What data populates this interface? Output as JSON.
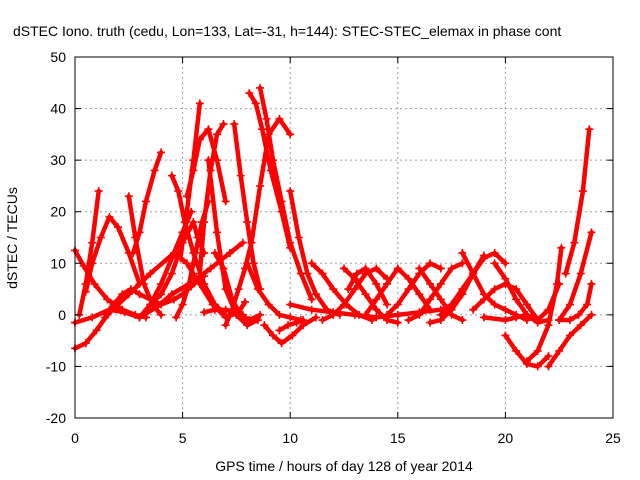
{
  "chart_data": {
    "type": "scatter",
    "title": "dSTEC Iono. truth (cedu, Lon=133, Lat=-31, h=144): STEC-STEC_elemax in phase cont",
    "xlabel": "GPS time / hours of day 128 of year 2014",
    "ylabel": "dSTEC  / TECUs",
    "xlim": [
      0,
      25
    ],
    "ylim": [
      -20,
      50
    ],
    "x_ticks": [
      "0",
      "5",
      "10",
      "15",
      "20",
      "25"
    ],
    "y_ticks": [
      "-20",
      "-10",
      "0",
      "10",
      "20",
      "30",
      "40",
      "50"
    ],
    "grid": true,
    "marker": "plus",
    "color": "#ff0000",
    "series": [
      {
        "x": [
          0.0,
          0.5,
          1.0,
          1.5,
          2.5,
          3.5,
          4.6,
          5.2,
          5.8,
          6.4,
          7.0,
          7.6,
          7.9
        ],
        "y": [
          -6.5,
          -5.5,
          -3,
          0,
          4,
          8,
          12,
          10,
          6,
          2,
          -0.5,
          0.5,
          2.5
        ]
      },
      {
        "x": [
          0.0,
          0.4,
          0.9,
          1.5,
          2.2,
          2.8,
          3.3
        ],
        "y": [
          12.5,
          9.5,
          6,
          3,
          1,
          0,
          -0.5
        ]
      },
      {
        "x": [
          0.0,
          0.8,
          1.6,
          2.3,
          3.0,
          3.8,
          4.5,
          5.5,
          6.3,
          7.2,
          7.8
        ],
        "y": [
          -1.5,
          -0.5,
          1,
          0.5,
          -0.5,
          1.5,
          4,
          6.5,
          9,
          12,
          14
        ]
      },
      {
        "x": [
          0.5,
          0.8,
          1.2,
          1.6,
          2.0,
          2.5,
          3.0
        ],
        "y": [
          4.5,
          10,
          15,
          19,
          17,
          12,
          6
        ]
      },
      {
        "x": [
          0.2,
          0.5,
          0.8,
          1.1
        ],
        "y": [
          0,
          6,
          14,
          24
        ]
      },
      {
        "x": [
          1.4,
          1.8,
          2.2,
          2.6,
          3.0,
          3.5,
          4.0,
          4.6,
          5.0,
          5.4,
          5.8,
          6.0
        ],
        "y": [
          -0.5,
          2,
          4,
          5,
          4,
          3,
          2,
          3,
          4,
          5.5,
          7,
          7.5
        ]
      },
      {
        "x": [
          2.5,
          2.8,
          3.2,
          3.6,
          4.0
        ],
        "y": [
          23,
          15,
          6,
          2,
          0
        ]
      },
      {
        "x": [
          2.7,
          3.0,
          3.3,
          3.7,
          4.0
        ],
        "y": [
          12,
          16,
          22,
          28,
          31.5
        ]
      },
      {
        "x": [
          3.0,
          3.5,
          4.0,
          4.5,
          5.0,
          5.4
        ],
        "y": [
          -0.5,
          2,
          6,
          11,
          16,
          20
        ]
      },
      {
        "x": [
          3.5,
          4.0,
          4.5,
          5.0,
          5.5,
          5.7,
          6.0
        ],
        "y": [
          2,
          4,
          8,
          14,
          18,
          15,
          12
        ]
      },
      {
        "x": [
          4.5,
          4.8,
          5.1,
          5.5,
          6.0,
          6.5,
          7.0
        ],
        "y": [
          27,
          24,
          18,
          12,
          6,
          2,
          0
        ]
      },
      {
        "x": [
          4.7,
          5.0,
          5.3,
          5.6,
          5.9,
          6.2
        ],
        "y": [
          -0.5,
          2,
          6,
          12,
          18,
          22
        ]
      },
      {
        "x": [
          4.9,
          5.2,
          5.5,
          5.8
        ],
        "y": [
          11,
          20,
          30,
          41
        ]
      },
      {
        "x": [
          5.2,
          5.5,
          5.8,
          6.2,
          6.6,
          7.0
        ],
        "y": [
          23,
          28,
          34,
          36,
          30,
          22
        ]
      },
      {
        "x": [
          5.8,
          6.0,
          6.3,
          6.6,
          6.9
        ],
        "y": [
          8,
          18,
          28,
          35,
          37
        ]
      },
      {
        "x": [
          6.0,
          6.5,
          7.0,
          7.4,
          7.8
        ],
        "y": [
          0.5,
          1,
          1,
          0.5,
          0
        ]
      },
      {
        "x": [
          6.2,
          6.6,
          7.0,
          7.5,
          8.0,
          8.5
        ],
        "y": [
          30,
          16,
          5,
          0,
          -2,
          -1
        ]
      },
      {
        "x": [
          6.5,
          6.9,
          7.3,
          7.7,
          8.1,
          8.6
        ],
        "y": [
          12,
          9,
          3,
          0,
          -1,
          0
        ]
      },
      {
        "x": [
          7.0,
          7.3,
          7.6,
          7.9,
          8.2,
          8.6,
          9.0,
          9.5,
          10.0
        ],
        "y": [
          -2,
          1,
          5,
          9,
          14,
          25,
          35,
          38,
          35
        ]
      },
      {
        "x": [
          7.4,
          7.7,
          8.0,
          8.3,
          8.6
        ],
        "y": [
          37,
          27,
          18,
          10,
          5
        ]
      },
      {
        "x": [
          8.1,
          8.4,
          8.7,
          9.1,
          9.6,
          10.0
        ],
        "y": [
          43,
          41,
          36,
          28,
          20,
          13
        ]
      },
      {
        "x": [
          8.6,
          8.9,
          9.2,
          9.6,
          10.0,
          10.5,
          11.0
        ],
        "y": [
          44,
          38,
          30,
          22,
          14,
          8,
          3
        ]
      },
      {
        "x": [
          8.8,
          9.2,
          9.6,
          10.1,
          10.6,
          11.2
        ],
        "y": [
          -2,
          -4,
          -5.5,
          -4,
          -2,
          -0.5
        ]
      },
      {
        "x": [
          9.5,
          9.9,
          10.3,
          10.6
        ],
        "y": [
          -3,
          -2,
          -1.5,
          -1
        ]
      },
      {
        "x": [
          8.0,
          8.5,
          9.0,
          9.5,
          10.0,
          10.5
        ],
        "y": [
          10,
          5,
          2,
          0,
          -0.5,
          -1
        ]
      },
      {
        "x": [
          10.0,
          10.4,
          10.8,
          11.2,
          11.7,
          12.3
        ],
        "y": [
          24,
          15,
          8,
          4,
          1,
          0
        ]
      },
      {
        "x": [
          10.0,
          11.0,
          12.0,
          13.0,
          14.0,
          15.0,
          16.0,
          17.0,
          17.5
        ],
        "y": [
          2,
          1,
          0.5,
          0,
          -0.5,
          0,
          0.5,
          1,
          1.5
        ]
      },
      {
        "x": [
          11.0,
          11.5,
          12.0,
          12.6,
          13.2,
          13.8
        ],
        "y": [
          10,
          8,
          5,
          2,
          0,
          -1
        ]
      },
      {
        "x": [
          11.5,
          12.0,
          12.5,
          13.0,
          13.5,
          14.0,
          14.5
        ],
        "y": [
          -1,
          0,
          2,
          5,
          8,
          9,
          7
        ]
      },
      {
        "x": [
          12.5,
          13.0,
          13.5,
          14.0,
          14.5,
          15.0
        ],
        "y": [
          9,
          7,
          4,
          1,
          -1,
          -1.5
        ]
      },
      {
        "x": [
          12.7,
          13.1,
          13.5,
          14.0,
          14.5
        ],
        "y": [
          5,
          8,
          9,
          6,
          2
        ]
      },
      {
        "x": [
          13.5,
          14.0,
          14.5,
          15.0,
          15.5,
          16.0,
          16.5
        ],
        "y": [
          0,
          3,
          6,
          9,
          7,
          4,
          1
        ]
      },
      {
        "x": [
          14.5,
          15.0,
          15.5,
          16.0,
          16.5,
          17.0
        ],
        "y": [
          0,
          2,
          5,
          8,
          10,
          9
        ]
      },
      {
        "x": [
          15.5,
          16.0,
          16.5,
          17.0,
          17.5,
          18.0
        ],
        "y": [
          -1,
          0,
          3,
          6,
          9,
          10
        ]
      },
      {
        "x": [
          16.0,
          16.5,
          17.0,
          17.5,
          18.0
        ],
        "y": [
          9,
          6,
          3,
          0,
          -1
        ]
      },
      {
        "x": [
          16.5,
          17.0,
          17.5,
          18.0,
          18.5,
          19.0
        ],
        "y": [
          -1.5,
          -1,
          1,
          4,
          8,
          11.5
        ]
      },
      {
        "x": [
          17.0,
          17.5,
          18.0,
          18.5,
          19.0,
          19.5,
          20.0
        ],
        "y": [
          0,
          2,
          5,
          8,
          11,
          12,
          10
        ]
      },
      {
        "x": [
          18.0,
          18.5,
          19.0,
          19.5,
          20.0,
          20.5,
          21.0
        ],
        "y": [
          12,
          8,
          4,
          2,
          1,
          0,
          -1
        ]
      },
      {
        "x": [
          18.5,
          19.0,
          19.5,
          20.0,
          20.5,
          21.0,
          21.5
        ],
        "y": [
          1,
          3,
          5,
          6,
          5,
          2,
          -1
        ]
      },
      {
        "x": [
          19.5,
          20.0,
          20.5,
          21.0,
          21.5,
          22.0,
          22.5
        ],
        "y": [
          10,
          7,
          3,
          0,
          -1,
          1,
          6
        ]
      },
      {
        "x": [
          19.0,
          20.0,
          20.5,
          21.0,
          21.5,
          22.0
        ],
        "y": [
          -0.5,
          -1,
          -0.5,
          0,
          -1.5,
          -1
        ]
      },
      {
        "x": [
          20.0,
          20.5,
          21.0,
          21.5,
          22.0
        ],
        "y": [
          -4,
          -7,
          -9.5,
          -10,
          -8
        ]
      },
      {
        "x": [
          21.0,
          21.5,
          22.0,
          22.4,
          22.6
        ],
        "y": [
          -9,
          -7,
          -2,
          6,
          13
        ]
      },
      {
        "x": [
          22.0,
          22.5,
          23.0,
          23.5,
          24.0
        ],
        "y": [
          -10,
          -7,
          -4,
          -2,
          0
        ]
      },
      {
        "x": [
          22.5,
          23.0,
          23.4,
          23.8,
          24.0
        ],
        "y": [
          -1,
          -1,
          0,
          2,
          6
        ]
      },
      {
        "x": [
          22.5,
          23.0,
          23.5,
          24.0
        ],
        "y": [
          -1,
          2,
          8,
          16
        ]
      },
      {
        "x": [
          22.8,
          23.2,
          23.6,
          23.9
        ],
        "y": [
          8,
          14,
          24,
          36
        ]
      }
    ]
  }
}
